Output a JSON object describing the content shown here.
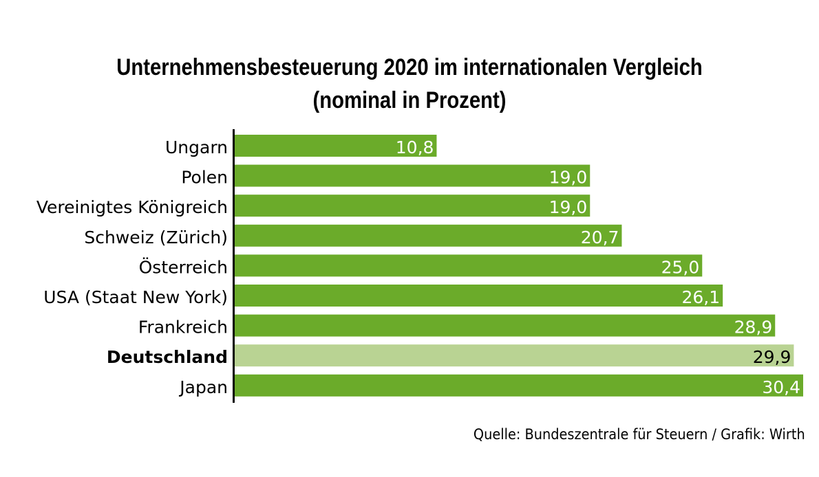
{
  "chart_data": {
    "type": "bar",
    "orientation": "horizontal",
    "title": "Unternehmensbesteuerung 2020 im internationalen Vergleich",
    "subtitle": "(nominal in Prozent)",
    "categories": [
      "Ungarn",
      "Polen",
      "Vereinigtes Königreich",
      "Schweiz (Zürich)",
      "Österreich",
      "USA (Staat New York)",
      "Frankreich",
      "Deutschland",
      "Japan"
    ],
    "values": [
      10.8,
      19.0,
      19.0,
      20.7,
      25.0,
      26.1,
      28.9,
      29.9,
      30.4
    ],
    "labels": [
      "10,8",
      "19,0",
      "19,0",
      "20,7",
      "25,0",
      "26,1",
      "28,9",
      "29,9",
      "30,4"
    ],
    "highlight": "Deutschland",
    "xlim": [
      0,
      30.4
    ],
    "grid": false,
    "colors": {
      "bar": "#6bab2a",
      "highlight": "#b9d393"
    },
    "source": "Quelle: Bundeszentrale für Steuern / Grafik: Wirth"
  }
}
